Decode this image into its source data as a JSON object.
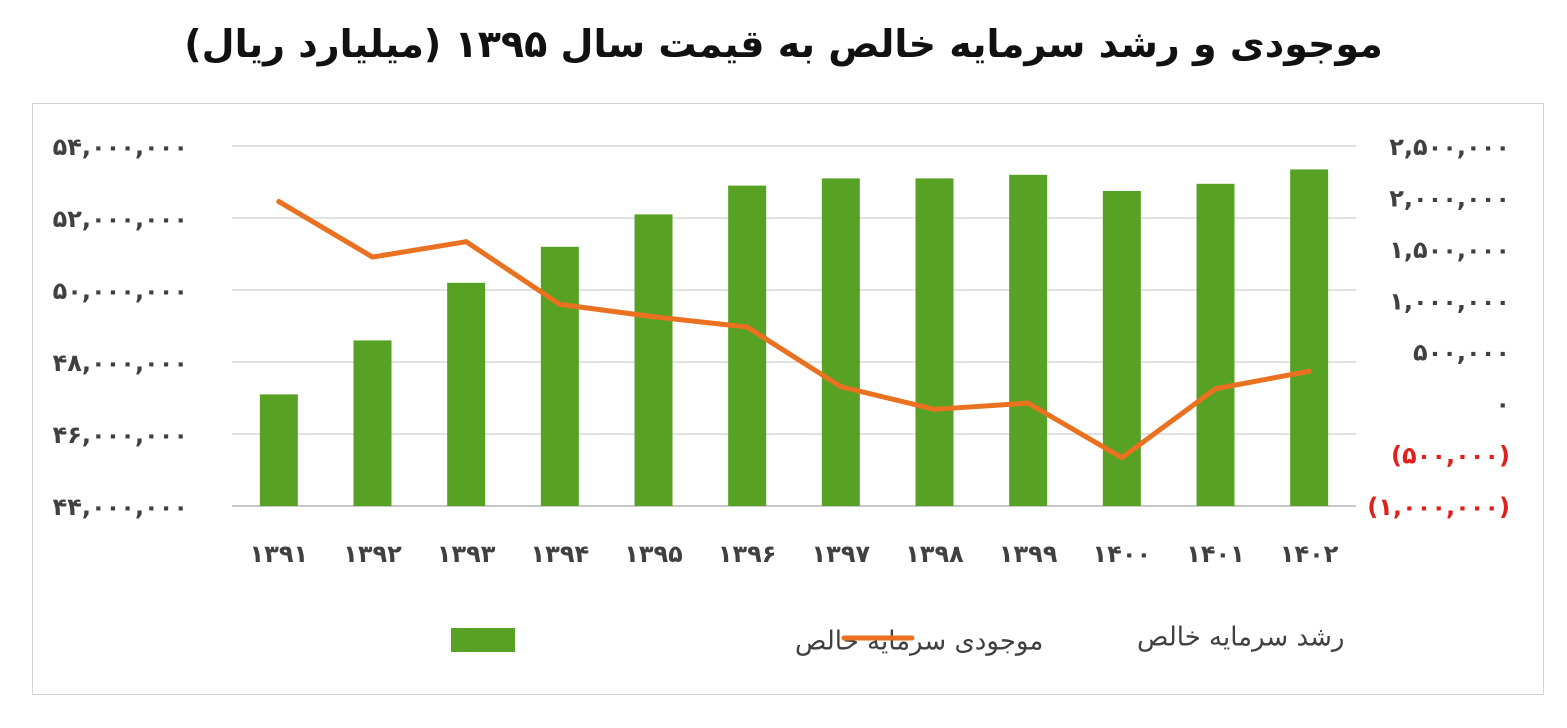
{
  "chart_data": {
    "type": "bar+line",
    "title": "موجودی و رشد سرمایه خالص به قیمت سال ۱۳۹۵ (میلیارد ریال)",
    "categories": [
      "۱۳۹۱",
      "۱۳۹۲",
      "۱۳۹۳",
      "۱۳۹۴",
      "۱۳۹۵",
      "۱۳۹۶",
      "۱۳۹۷",
      "۱۳۹۸",
      "۱۳۹۹",
      "۱۴۰۰",
      "۱۴۰۱",
      "۱۴۰۲"
    ],
    "series": [
      {
        "name": "موجودی سرمایه خالص",
        "type": "bar",
        "axis": "left",
        "color": "#57a125",
        "values": [
          47100000,
          48600000,
          50200000,
          51200000,
          52100000,
          52900000,
          53100000,
          53100000,
          53200000,
          52750000,
          52950000,
          53350000
        ]
      },
      {
        "name": "رشد سرمایه خالص",
        "type": "line",
        "axis": "right",
        "color": "#e9711f",
        "values": [
          1960000,
          1420000,
          1570000,
          960000,
          840000,
          740000,
          160000,
          -60000,
          0,
          -530000,
          140000,
          310000
        ]
      }
    ],
    "left_axis": {
      "min": 44000000,
      "max": 54000000,
      "ticks": [
        54000000,
        52000000,
        50000000,
        48000000,
        46000000,
        44000000
      ],
      "tick_labels": [
        "۵۴,۰۰۰,۰۰۰",
        "۵۲,۰۰۰,۰۰۰",
        "۵۰,۰۰۰,۰۰۰",
        "۴۸,۰۰۰,۰۰۰",
        "۴۶,۰۰۰,۰۰۰",
        "۴۴,۰۰۰,۰۰۰"
      ]
    },
    "right_axis": {
      "min": -1000000,
      "max": 2500000,
      "ticks": [
        2500000,
        2000000,
        1500000,
        1000000,
        500000,
        0,
        -500000,
        -1000000
      ],
      "tick_labels": [
        "۲,۵۰۰,۰۰۰",
        "۲,۰۰۰,۰۰۰",
        "۱,۵۰۰,۰۰۰",
        "۱,۰۰۰,۰۰۰",
        "۵۰۰,۰۰۰",
        "۰",
        "(۵۰۰,۰۰۰)",
        "(۱,۰۰۰,۰۰۰)"
      ],
      "negative_color": "#e0201b"
    },
    "grid": true,
    "legend_position": "bottom"
  }
}
